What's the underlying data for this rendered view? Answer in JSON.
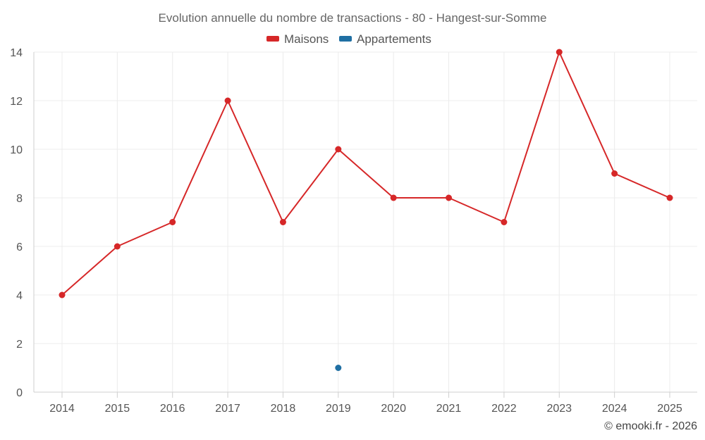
{
  "chart_data": {
    "type": "line",
    "title": "Evolution annuelle du nombre de transactions - 80 - Hangest-sur-Somme",
    "categories": [
      "2014",
      "2015",
      "2016",
      "2017",
      "2018",
      "2019",
      "2020",
      "2021",
      "2022",
      "2023",
      "2024",
      "2025"
    ],
    "series": [
      {
        "name": "Maisons",
        "color": "#d62728",
        "values": [
          4,
          6,
          7,
          12,
          7,
          10,
          8,
          8,
          7,
          14,
          9,
          8
        ]
      },
      {
        "name": "Appartements",
        "color": "#1f6fa3",
        "values": [
          null,
          null,
          null,
          null,
          null,
          1,
          null,
          null,
          null,
          null,
          null,
          null
        ]
      }
    ],
    "ylim": [
      0,
      14
    ],
    "yticks": [
      0,
      2,
      4,
      6,
      8,
      10,
      12,
      14
    ],
    "grid": true,
    "legend_position": "top-center",
    "credit": "© emooki.fr - 2026"
  }
}
